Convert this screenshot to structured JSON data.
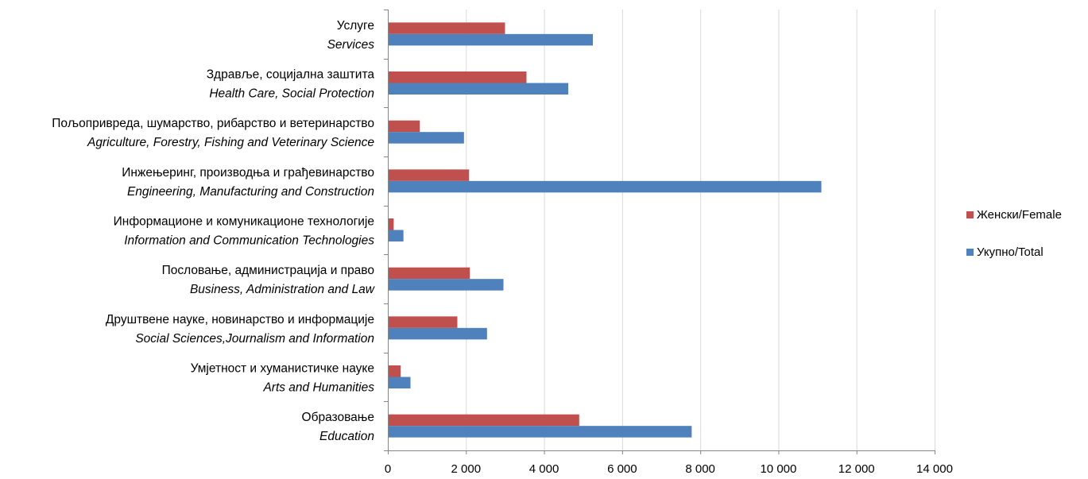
{
  "chart_data": {
    "type": "bar",
    "orientation": "horizontal",
    "categories": [
      {
        "sr": "Услуге",
        "en": "Services"
      },
      {
        "sr": "Здравље, социјална заштита",
        "en": "Health Care, Social Protection"
      },
      {
        "sr": "Пољопривреда, шумарство, рибарство и ветеринарство",
        "en": "Agriculture, Forestry, Fishing and Veterinary Science"
      },
      {
        "sr": "Инжењеринг, производња и грађевинарство",
        "en": "Engineering, Manufacturing and Construction"
      },
      {
        "sr": "Информационе и комуникационе технологије",
        "en": "Information and Communication Technologies"
      },
      {
        "sr": "Пословање, администрација и право",
        "en": "Business, Administration and Law"
      },
      {
        "sr": "Друштвене науке, новинарство и информације",
        "en": "Social Sciences,Journalism and Information"
      },
      {
        "sr": "Умјетност и хуманистичке науке",
        "en": "Arts and Humanities"
      },
      {
        "sr": "Образовање",
        "en": "Education"
      }
    ],
    "series": [
      {
        "name": "Женски/Female",
        "color": "#c0504d",
        "values": [
          3000,
          3550,
          820,
          2080,
          150,
          2100,
          1780,
          330,
          4900
        ]
      },
      {
        "name": "Укупно/Total",
        "color": "#4f81bd",
        "values": [
          5250,
          4620,
          1950,
          11100,
          400,
          2960,
          2540,
          580,
          7780
        ]
      }
    ],
    "xlim": [
      0,
      14000
    ],
    "xticks": [
      0,
      2000,
      4000,
      6000,
      8000,
      10000,
      12000,
      14000
    ],
    "xtick_labels": [
      "0",
      "2 000",
      "4 000",
      "6 000",
      "8 000",
      "10 000",
      "12 000",
      "14 000"
    ],
    "grid": true,
    "legend_position": "right",
    "legend_order": [
      "Женски/Female",
      "Укупно/Total"
    ]
  }
}
